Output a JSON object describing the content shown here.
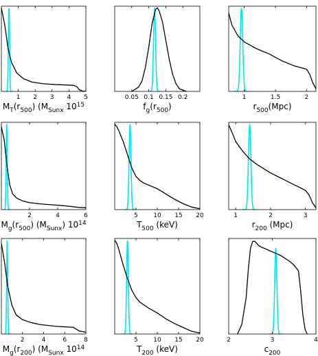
{
  "colors": {
    "posterior": "#000000",
    "input": "#00e5ee",
    "frame": "#000000"
  },
  "chart_data": [
    {
      "type": "line",
      "name": "MT_r500",
      "xlim": [
        0,
        5
      ],
      "xticks": [
        1,
        2,
        3,
        4,
        5
      ],
      "ticklabels": [
        "1",
        "2",
        "3",
        "4",
        "5"
      ],
      "xlabel": {
        "parts": [
          {
            "t": "M",
            "s": "n"
          },
          {
            "t": "T",
            "s": "sub"
          },
          {
            "t": "(r",
            "s": "n"
          },
          {
            "t": "500",
            "s": "sub"
          },
          {
            "t": ") (M",
            "s": "n"
          },
          {
            "t": "Sunx",
            "s": "sub"
          },
          {
            "t": " 10",
            "s": "n"
          },
          {
            "t": "15",
            "s": "sup"
          }
        ]
      },
      "posterior": {
        "x": [
          0,
          0.2,
          0.4,
          0.6,
          0.9,
          1.3,
          1.8,
          2.5,
          3.2,
          3.9,
          4.3,
          4.5,
          4.6,
          4.8,
          5.0
        ],
        "y": [
          0.98,
          0.78,
          0.5,
          0.34,
          0.22,
          0.15,
          0.11,
          0.09,
          0.08,
          0.075,
          0.07,
          0.05,
          0.02,
          0.005,
          0
        ]
      },
      "input": {
        "center": 0.45,
        "width": 0.07,
        "height": 0.98
      }
    },
    {
      "type": "line",
      "name": "fg_r500",
      "xlim": [
        0,
        0.25
      ],
      "xticks": [
        0.05,
        0.1,
        0.15,
        0.2
      ],
      "ticklabels": [
        "0.05",
        "0.1",
        "0.15",
        "0.2"
      ],
      "xlabel": {
        "parts": [
          {
            "t": "f",
            "s": "n"
          },
          {
            "t": "g",
            "s": "sub"
          },
          {
            "t": "(r",
            "s": "n"
          },
          {
            "t": "500",
            "s": "sub"
          },
          {
            "t": ")",
            "s": "n"
          }
        ]
      },
      "posterior": {
        "x": [
          0.05,
          0.07,
          0.08,
          0.09,
          0.1,
          0.11,
          0.12,
          0.125,
          0.13,
          0.14,
          0.15,
          0.16,
          0.17,
          0.18,
          0.19,
          0.21
        ],
        "y": [
          0,
          0.05,
          0.12,
          0.28,
          0.52,
          0.8,
          0.96,
          0.98,
          0.95,
          0.82,
          0.6,
          0.38,
          0.2,
          0.09,
          0.03,
          0
        ]
      },
      "input": {
        "center": 0.117,
        "width": 0.006,
        "height": 0.98
      }
    },
    {
      "type": "line",
      "name": "r500",
      "xlim": [
        0.75,
        2.15
      ],
      "xticks": [
        1,
        1.5,
        2
      ],
      "ticklabels": [
        "1",
        "1.5",
        "2"
      ],
      "xlabel": {
        "parts": [
          {
            "t": "r",
            "s": "n"
          },
          {
            "t": "500",
            "s": "sub"
          },
          {
            "t": "(Mpc)",
            "s": "n"
          }
        ]
      },
      "posterior": {
        "x": [
          0.75,
          0.8,
          0.9,
          1.0,
          1.1,
          1.2,
          1.3,
          1.4,
          1.5,
          1.6,
          1.7,
          1.8,
          1.9,
          2.0,
          2.05,
          2.1,
          2.15
        ],
        "y": [
          0.92,
          0.78,
          0.65,
          0.58,
          0.54,
          0.5,
          0.47,
          0.44,
          0.4,
          0.36,
          0.33,
          0.3,
          0.28,
          0.26,
          0.2,
          0.1,
          0.03
        ]
      },
      "input": {
        "center": 0.955,
        "width": 0.04,
        "height": 0.98
      }
    },
    {
      "type": "line",
      "name": "Mg_r500",
      "xlim": [
        0,
        6
      ],
      "xticks": [
        2,
        4,
        6
      ],
      "ticklabels": [
        "2",
        "4",
        "6"
      ],
      "xlabel": {
        "parts": [
          {
            "t": "M",
            "s": "n"
          },
          {
            "t": "g",
            "s": "sub"
          },
          {
            "t": "(r",
            "s": "n"
          },
          {
            "t": "500",
            "s": "sub"
          },
          {
            "t": ") (M",
            "s": "n"
          },
          {
            "t": "Sunx",
            "s": "sub"
          },
          {
            "t": ") 10",
            "s": "n"
          },
          {
            "t": "14",
            "s": "sup"
          }
        ]
      },
      "posterior": {
        "x": [
          0,
          0.2,
          0.4,
          0.6,
          0.8,
          1.1,
          1.5,
          2.0,
          2.8,
          3.6,
          4.4,
          5.0,
          5.5,
          6.0
        ],
        "y": [
          0.95,
          0.8,
          0.5,
          0.28,
          0.18,
          0.13,
          0.1,
          0.08,
          0.065,
          0.055,
          0.045,
          0.035,
          0.025,
          0.02
        ]
      },
      "input": {
        "center": 0.38,
        "width": 0.08,
        "height": 0.98
      }
    },
    {
      "type": "line",
      "name": "T500",
      "xlim": [
        0,
        20
      ],
      "xticks": [
        5,
        10,
        15,
        20
      ],
      "ticklabels": [
        "5",
        "10",
        "15",
        "20"
      ],
      "xlabel": {
        "parts": [
          {
            "t": "T",
            "s": "n"
          },
          {
            "t": "500",
            "s": "sub"
          },
          {
            "t": " (keV)",
            "s": "n"
          }
        ]
      },
      "posterior": {
        "x": [
          0,
          0.5,
          1,
          2,
          3,
          4,
          5,
          6,
          7,
          8,
          10,
          12,
          14,
          16,
          18,
          20
        ],
        "y": [
          0.98,
          0.95,
          0.9,
          0.78,
          0.63,
          0.48,
          0.38,
          0.33,
          0.3,
          0.28,
          0.24,
          0.18,
          0.12,
          0.07,
          0.03,
          0.01
        ]
      },
      "input": {
        "center": 3.6,
        "width": 0.45,
        "height": 0.98
      }
    },
    {
      "type": "line",
      "name": "r200",
      "xlim": [
        0.8,
        3.3
      ],
      "xticks": [
        1,
        2,
        3
      ],
      "ticklabels": [
        "1",
        "2",
        "3"
      ],
      "xlabel": {
        "parts": [
          {
            "t": "r",
            "s": "n"
          },
          {
            "t": "200",
            "s": "sub"
          },
          {
            "t": " (Mpc)",
            "s": "n"
          }
        ]
      },
      "posterior": {
        "x": [
          0.8,
          0.9,
          1.0,
          1.2,
          1.4,
          1.6,
          1.8,
          2.0,
          2.2,
          2.4,
          2.6,
          2.8,
          3.0,
          3.1,
          3.2,
          3.3
        ],
        "y": [
          0.97,
          0.88,
          0.78,
          0.67,
          0.58,
          0.52,
          0.47,
          0.42,
          0.38,
          0.34,
          0.3,
          0.26,
          0.22,
          0.17,
          0.08,
          0.02
        ]
      },
      "input": {
        "center": 1.4,
        "width": 0.07,
        "height": 0.98
      }
    },
    {
      "type": "line",
      "name": "Mg_r200",
      "xlim": [
        0,
        8
      ],
      "xticks": [
        2,
        4,
        6,
        8
      ],
      "ticklabels": [
        "2",
        "4",
        "6",
        "8"
      ],
      "xlabel": {
        "parts": [
          {
            "t": "M",
            "s": "n"
          },
          {
            "t": "g",
            "s": "sub"
          },
          {
            "t": "(r",
            "s": "n"
          },
          {
            "t": "200",
            "s": "sub"
          },
          {
            "t": ") (M",
            "s": "n"
          },
          {
            "t": "Sunx",
            "s": "sub"
          },
          {
            "t": " 10",
            "s": "n"
          },
          {
            "t": "14",
            "s": "sup"
          }
        ]
      },
      "posterior": {
        "x": [
          0,
          0.3,
          0.6,
          1.0,
          1.4,
          2.0,
          2.8,
          3.6,
          4.4,
          5.2,
          6.0,
          6.8,
          7.4,
          8.0
        ],
        "y": [
          0.95,
          0.75,
          0.5,
          0.3,
          0.2,
          0.15,
          0.12,
          0.1,
          0.09,
          0.08,
          0.075,
          0.07,
          0.03,
          0.02
        ]
      },
      "input": {
        "center": 0.55,
        "width": 0.1,
        "height": 0.98
      }
    },
    {
      "type": "line",
      "name": "T200",
      "xlim": [
        0,
        20
      ],
      "xticks": [
        5,
        10,
        15,
        20
      ],
      "ticklabels": [
        "5",
        "10",
        "15",
        "20"
      ],
      "xlabel": {
        "parts": [
          {
            "t": "T",
            "s": "n"
          },
          {
            "t": "200",
            "s": "sub"
          },
          {
            "t": " (keV)",
            "s": "n"
          }
        ]
      },
      "posterior": {
        "x": [
          0,
          0.5,
          1,
          2,
          3,
          4,
          5,
          6,
          8,
          10,
          12,
          14,
          16,
          18,
          20
        ],
        "y": [
          0.98,
          0.95,
          0.88,
          0.72,
          0.58,
          0.46,
          0.38,
          0.33,
          0.27,
          0.22,
          0.16,
          0.11,
          0.07,
          0.03,
          0.01
        ]
      },
      "input": {
        "center": 3.0,
        "width": 0.4,
        "height": 0.98
      }
    },
    {
      "type": "line",
      "name": "c200",
      "xlim": [
        2,
        4
      ],
      "xticks": [
        2,
        3,
        4
      ],
      "ticklabels": [
        "2",
        "3",
        "4"
      ],
      "xlabel": {
        "parts": [
          {
            "t": "c",
            "s": "n"
          },
          {
            "t": "200",
            "s": "sub"
          }
        ]
      },
      "posterior": {
        "x": [
          2.2,
          2.3,
          2.4,
          2.45,
          2.5,
          2.55,
          2.6,
          2.7,
          2.8,
          3.0,
          3.2,
          3.4,
          3.5,
          3.6,
          3.65,
          3.7,
          3.75,
          3.8
        ],
        "y": [
          0,
          0.1,
          0.38,
          0.68,
          0.9,
          0.97,
          0.97,
          0.92,
          0.9,
          0.86,
          0.82,
          0.76,
          0.72,
          0.66,
          0.45,
          0.2,
          0.05,
          0
        ]
      },
      "input": {
        "center": 3.08,
        "width": 0.05,
        "height": 0.9
      }
    }
  ]
}
